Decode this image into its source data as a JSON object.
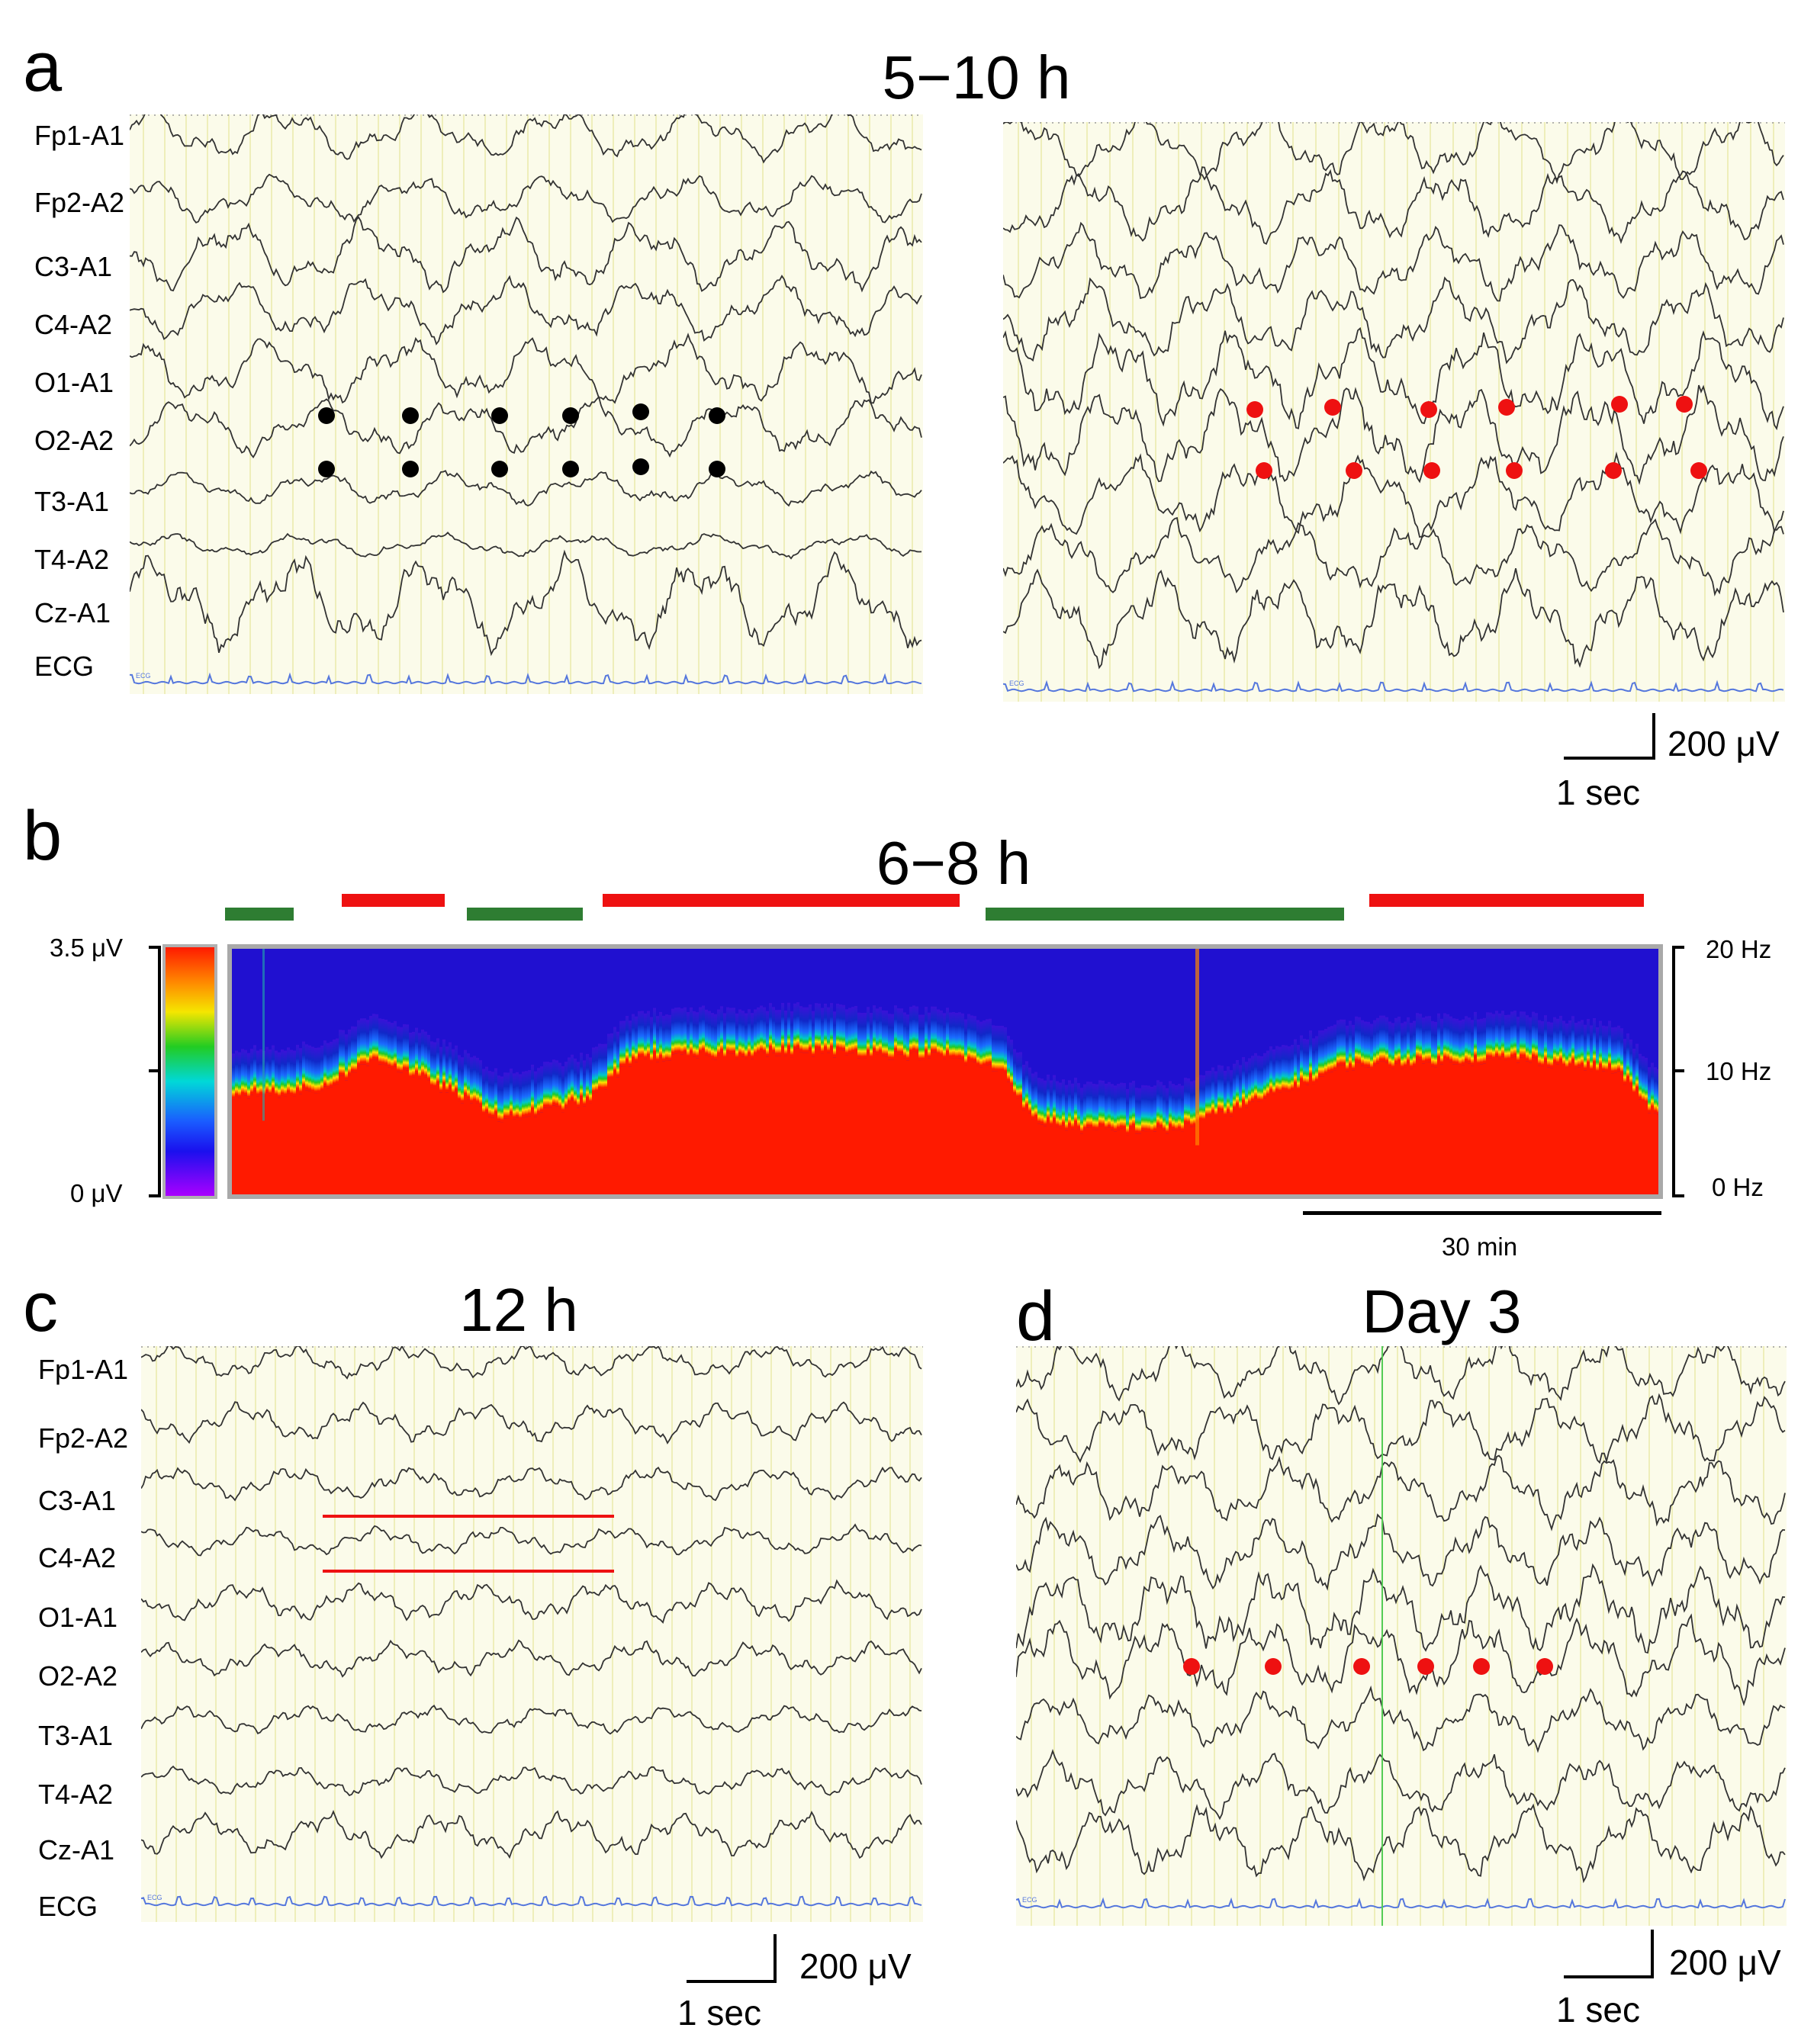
{
  "panels": {
    "a": {
      "letter": "a",
      "title": "5−10 h"
    },
    "b": {
      "letter": "b",
      "title": "6−8 h"
    },
    "c": {
      "letter": "c",
      "title": "12 h"
    },
    "d": {
      "letter": "d",
      "title": "Day 3"
    }
  },
  "channels_a": [
    "Fp1-A1",
    "Fp2-A2",
    "C3-A1",
    "C4-A2",
    "O1-A1",
    "O2-A2",
    "T3-A1",
    "T4-A2",
    "Cz-A1",
    "ECG"
  ],
  "channels_c": [
    "Fp1-A1",
    "Fp2-A2",
    "C3-A1",
    "C4-A2",
    "O1-A1",
    "O2-A2",
    "T3-A1",
    "T4-A2",
    "Cz-A1",
    "ECG"
  ],
  "ecg_tag": "ECG",
  "scale": {
    "amplitude": "200 μV",
    "time": "1 sec"
  },
  "spectrogram": {
    "amp_max": "3.5 μV",
    "amp_min": "0 μV",
    "freq_max": "20 Hz",
    "freq_mid": "10 Hz",
    "freq_min": "0 Hz",
    "time_scale": "30 min"
  },
  "colors": {
    "seizure": "#ee1111",
    "interictal": "#2e7d32",
    "dot_black": "#000000",
    "dot_red": "#ee1111",
    "trace": "#333333",
    "ecg": "#5577dd",
    "background": "#fbfbea"
  }
}
